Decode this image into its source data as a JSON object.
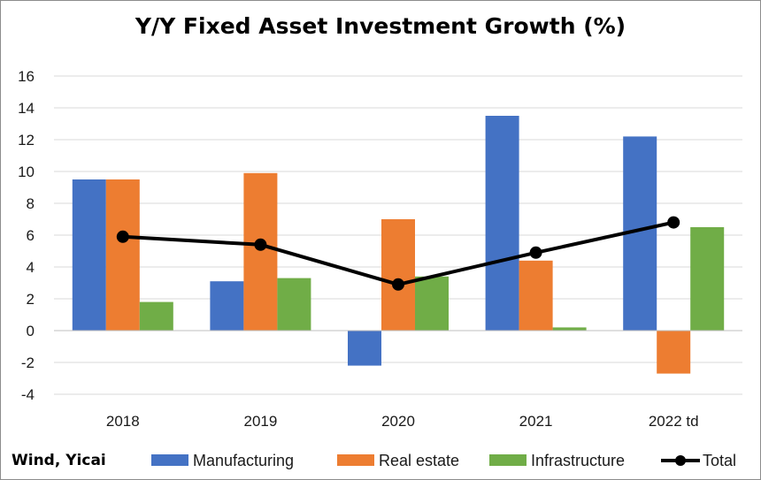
{
  "chart_data": {
    "type": "bar",
    "title": "Y/Y Fixed Asset Investment Growth (%)",
    "categories": [
      "2018",
      "2019",
      "2020",
      "2021",
      "2022 td"
    ],
    "ylim": [
      -4,
      16
    ],
    "yticks": [
      16,
      14,
      12,
      10,
      8,
      6,
      4,
      2,
      0,
      -2,
      -4
    ],
    "grid": true,
    "legend_position": "bottom",
    "series": [
      {
        "name": "Manufacturing",
        "type": "bar",
        "color": "#4472c4",
        "values": [
          9.5,
          3.1,
          -2.2,
          13.5,
          12.2
        ]
      },
      {
        "name": "Real estate",
        "type": "bar",
        "color": "#ed7d31",
        "values": [
          9.5,
          9.9,
          7.0,
          4.4,
          -2.7
        ]
      },
      {
        "name": "Infrastructure",
        "type": "bar",
        "color": "#70ad47",
        "values": [
          1.8,
          3.3,
          3.4,
          0.2,
          6.5
        ]
      },
      {
        "name": "Total",
        "type": "line",
        "color": "#000000",
        "values": [
          5.9,
          5.4,
          2.9,
          4.9,
          6.8
        ]
      }
    ]
  },
  "source_note": "Wind, Yicai"
}
